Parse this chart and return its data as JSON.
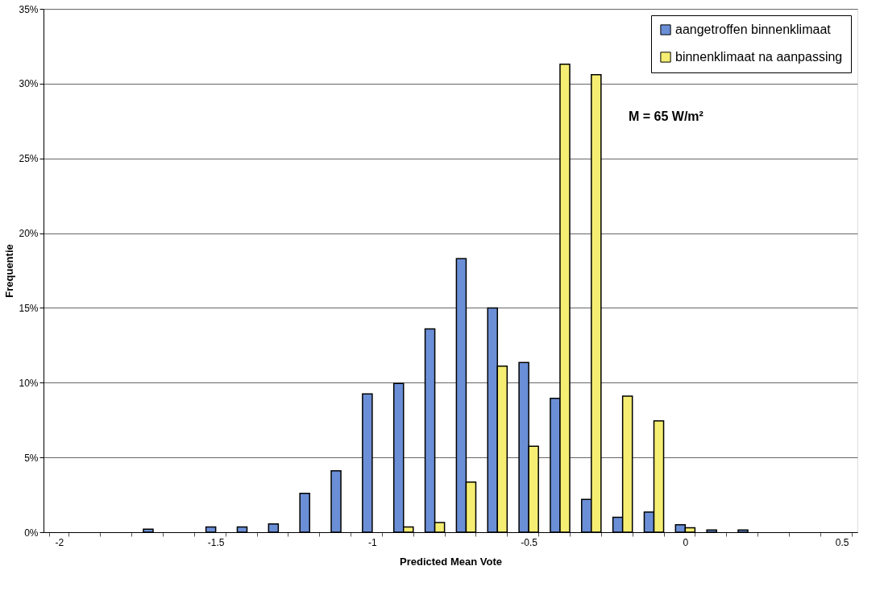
{
  "chart_data": {
    "type": "bar",
    "xlabel": "Predicted Mean Vote",
    "ylabel": "Frequentie",
    "categories": [
      "-2",
      null,
      null,
      null,
      null,
      "-1.5",
      null,
      null,
      null,
      null,
      "-1",
      null,
      null,
      null,
      null,
      "-0.5",
      null,
      null,
      null,
      null,
      "0",
      null,
      null,
      null,
      null,
      "0.5"
    ],
    "series": [
      {
        "name": "aangetroffen binnenklimaat",
        "color": "#6b8fd6",
        "values": [
          null,
          null,
          null,
          0.2,
          null,
          0.35,
          0.35,
          0.55,
          2.6,
          4.1,
          9.25,
          9.95,
          13.6,
          18.3,
          15.0,
          11.35,
          8.95,
          2.2,
          1.0,
          1.35,
          0.5,
          0.15,
          0.15,
          null,
          null,
          null
        ]
      },
      {
        "name": "binnenklimaat na aanpassing",
        "color": "#f5ee72",
        "values": [
          null,
          null,
          null,
          null,
          null,
          null,
          null,
          null,
          null,
          null,
          null,
          0.35,
          0.65,
          3.35,
          11.1,
          5.75,
          31.3,
          30.6,
          9.1,
          7.45,
          0.3,
          null,
          null,
          null,
          null,
          null
        ]
      }
    ],
    "ylim": [
      0,
      35
    ],
    "yticks": [
      {
        "value": 0,
        "label": "0%"
      },
      {
        "value": 5,
        "label": "5%"
      },
      {
        "value": 10,
        "label": "10%"
      },
      {
        "value": 15,
        "label": "15%"
      },
      {
        "value": 20,
        "label": "20%"
      },
      {
        "value": 25,
        "label": "25%"
      },
      {
        "value": 30,
        "label": "30%"
      },
      {
        "value": 35,
        "label": "35%"
      }
    ],
    "grid": "y",
    "legend": "top right",
    "annotations": [
      "M = 65 W/m²"
    ]
  }
}
